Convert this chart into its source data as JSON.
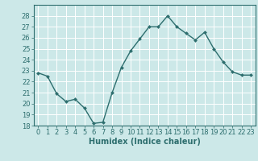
{
  "x": [
    0,
    1,
    2,
    3,
    4,
    5,
    6,
    7,
    8,
    9,
    10,
    11,
    12,
    13,
    14,
    15,
    16,
    17,
    18,
    19,
    20,
    21,
    22,
    23
  ],
  "y": [
    22.8,
    22.5,
    20.9,
    20.2,
    20.4,
    19.6,
    18.2,
    18.3,
    21.0,
    23.3,
    24.8,
    25.9,
    27.0,
    27.0,
    28.0,
    27.0,
    26.4,
    25.8,
    26.5,
    25.0,
    23.8,
    22.9,
    22.6,
    22.6
  ],
  "line_color": "#2d6e6e",
  "marker": "D",
  "marker_size": 2.0,
  "line_width": 1.0,
  "xlabel": "Humidex (Indice chaleur)",
  "ylim": [
    18,
    29
  ],
  "xlim": [
    -0.5,
    23.5
  ],
  "yticks": [
    18,
    19,
    20,
    21,
    22,
    23,
    24,
    25,
    26,
    27,
    28
  ],
  "xticks": [
    0,
    1,
    2,
    3,
    4,
    5,
    6,
    7,
    8,
    9,
    10,
    11,
    12,
    13,
    14,
    15,
    16,
    17,
    18,
    19,
    20,
    21,
    22,
    23
  ],
  "bg_color": "#cce8e8",
  "grid_color": "#ffffff",
  "tick_color": "#2d6e6e",
  "label_color": "#2d6e6e",
  "xlabel_fontsize": 7,
  "tick_fontsize": 6.0
}
